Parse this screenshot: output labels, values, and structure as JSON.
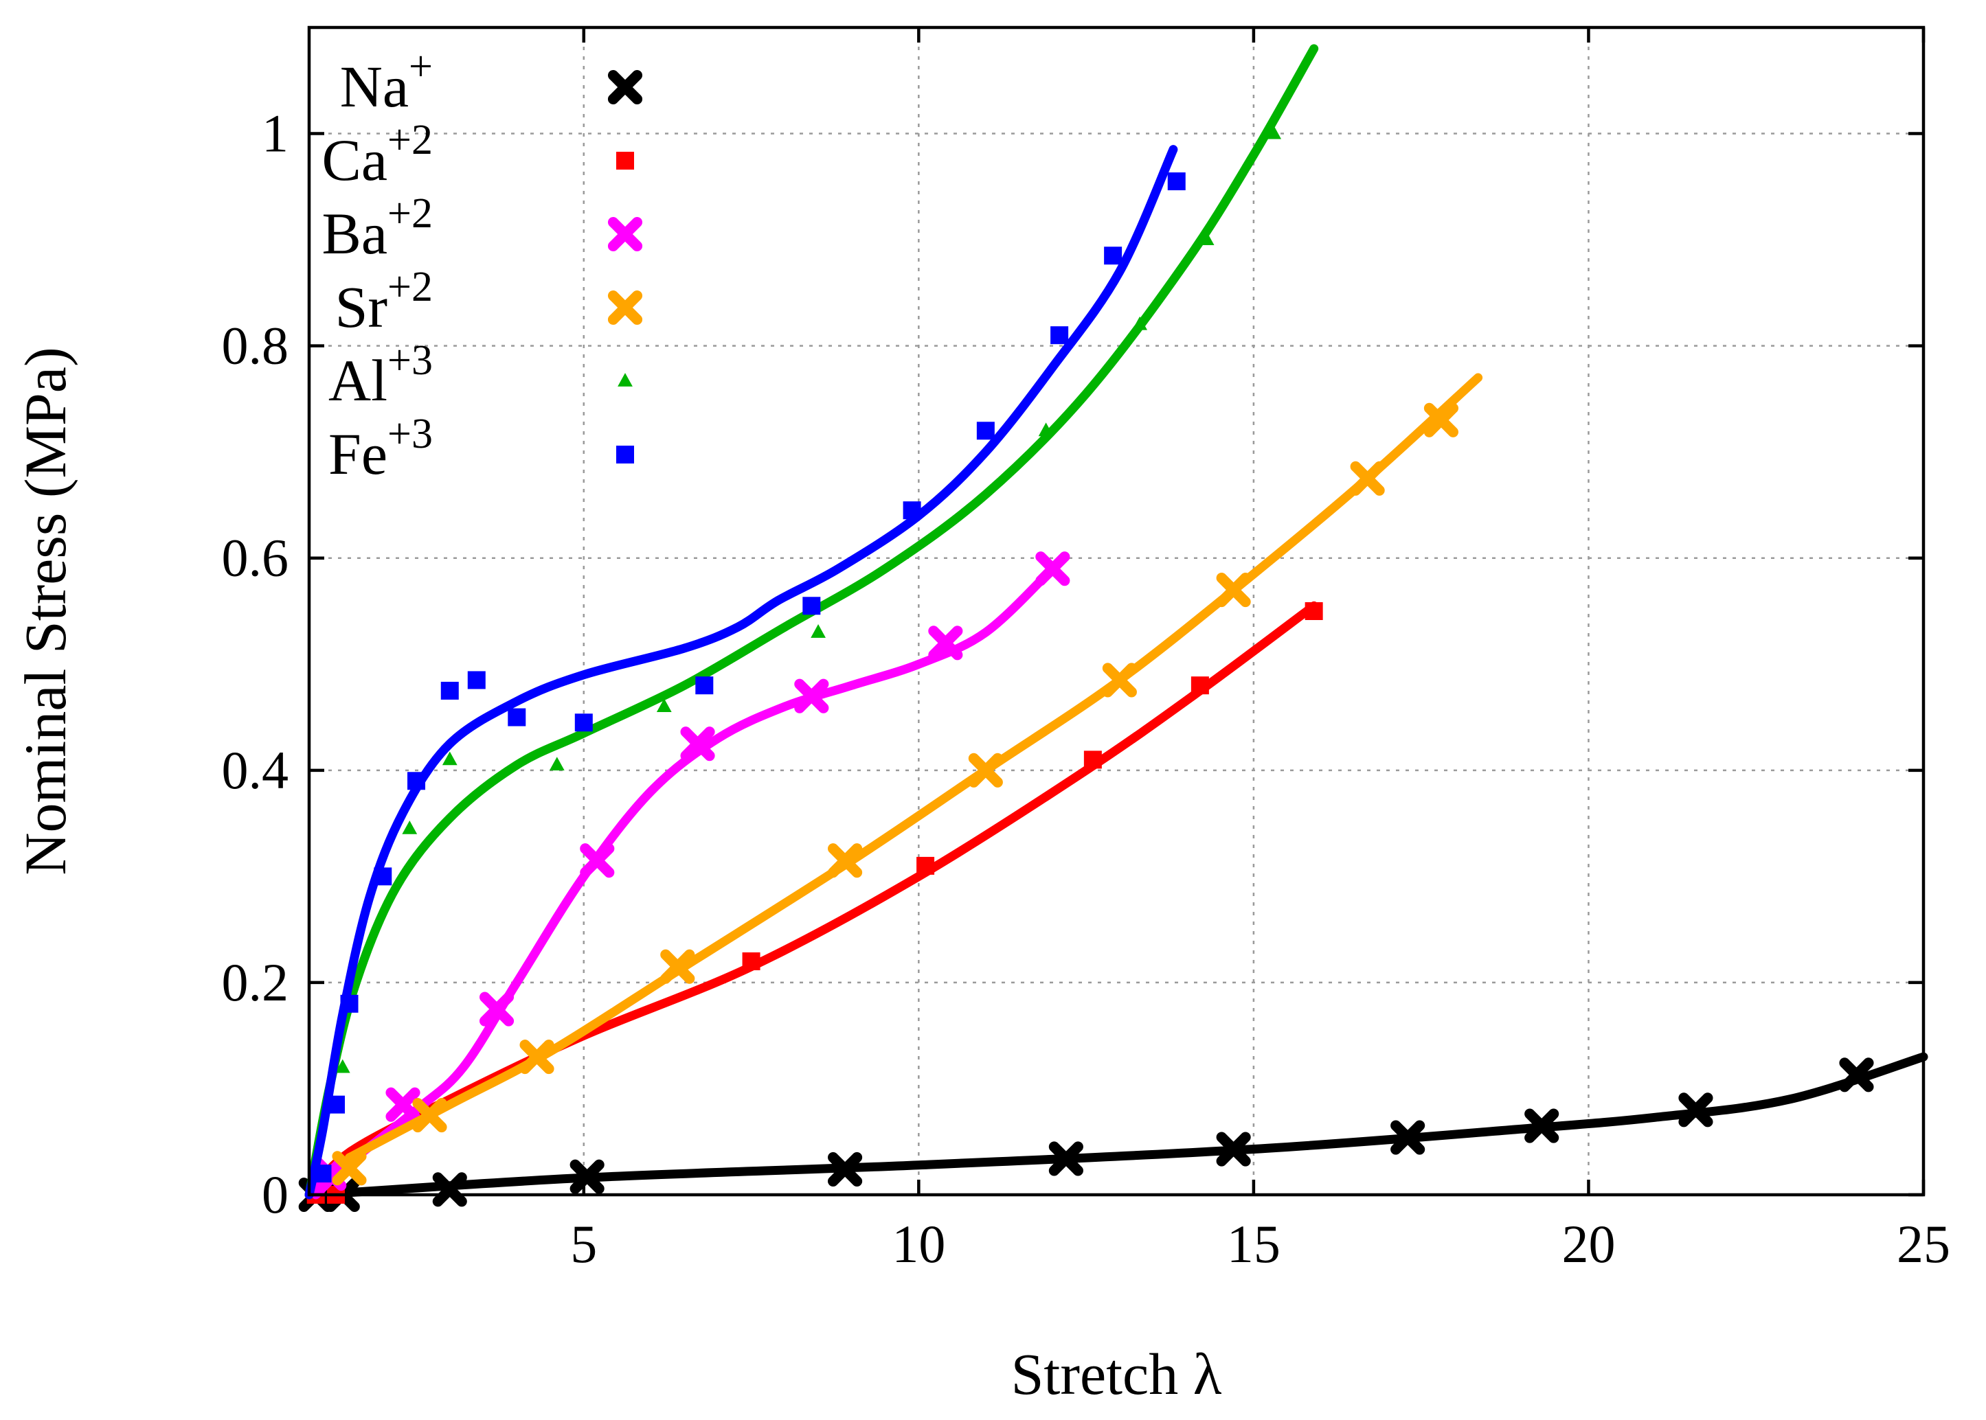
{
  "chart_data": {
    "type": "scatter",
    "title": "",
    "xlabel": "Stretch λ",
    "ylabel": "Nominal Stress (MPa)",
    "xlim": [
      0.9,
      25
    ],
    "ylim": [
      0,
      1.1
    ],
    "xticks": [
      5,
      10,
      15,
      20,
      25
    ],
    "yticks": [
      0,
      0.2,
      0.4,
      0.6,
      0.8,
      1
    ],
    "xtick_labels": [
      "5",
      "10",
      "15",
      "20",
      "25"
    ],
    "ytick_labels": [
      "0",
      "0.2",
      "0.4",
      "0.6",
      "0.8",
      "1"
    ],
    "grid": true,
    "legend_position": "top-left",
    "series": [
      {
        "name": "Na",
        "sup": "+",
        "color": "#000000",
        "marker": "x",
        "points": [
          [
            1.0,
            0.0
          ],
          [
            1.4,
            0.0
          ],
          [
            3.0,
            0.005
          ],
          [
            5.05,
            0.017
          ],
          [
            8.9,
            0.024
          ],
          [
            12.2,
            0.034
          ],
          [
            14.7,
            0.043
          ],
          [
            17.3,
            0.054
          ],
          [
            19.3,
            0.065
          ],
          [
            21.6,
            0.08
          ],
          [
            24.0,
            0.113
          ]
        ],
        "fit": [
          [
            1.0,
            0.0
          ],
          [
            5,
            0.016
          ],
          [
            10,
            0.028
          ],
          [
            15,
            0.043
          ],
          [
            19,
            0.062
          ],
          [
            21,
            0.073
          ],
          [
            23,
            0.09
          ],
          [
            25,
            0.13
          ]
        ]
      },
      {
        "name": "Ca",
        "sup": "+2",
        "color": "#ff0000",
        "marker": "square",
        "points": [
          [
            1.0,
            0.0
          ],
          [
            1.3,
            0.0
          ],
          [
            7.5,
            0.22
          ],
          [
            10.1,
            0.31
          ],
          [
            12.6,
            0.41
          ],
          [
            14.2,
            0.48
          ],
          [
            15.9,
            0.55
          ]
        ],
        "fit": [
          [
            0.9,
            0.0
          ],
          [
            1.5,
            0.04
          ],
          [
            3,
            0.09
          ],
          [
            5,
            0.15
          ],
          [
            7.5,
            0.215
          ],
          [
            10,
            0.3
          ],
          [
            12.5,
            0.4
          ],
          [
            14.2,
            0.475
          ],
          [
            15.9,
            0.555
          ]
        ]
      },
      {
        "name": "Ba",
        "sup": "+2",
        "color": "#ff00ff",
        "marker": "x",
        "points": [
          [
            1.2,
            0.02
          ],
          [
            2.3,
            0.085
          ],
          [
            3.7,
            0.175
          ],
          [
            5.2,
            0.315
          ],
          [
            6.7,
            0.425
          ],
          [
            8.4,
            0.47
          ],
          [
            10.4,
            0.52
          ],
          [
            12.0,
            0.59
          ]
        ],
        "fit": [
          [
            1.0,
            0.0
          ],
          [
            1.5,
            0.03
          ],
          [
            2.5,
            0.08
          ],
          [
            3.2,
            0.12
          ],
          [
            4,
            0.2
          ],
          [
            5,
            0.3
          ],
          [
            6,
            0.38
          ],
          [
            7,
            0.43
          ],
          [
            8,
            0.46
          ],
          [
            9,
            0.48
          ],
          [
            10,
            0.5
          ],
          [
            11,
            0.53
          ],
          [
            12.0,
            0.59
          ]
        ]
      },
      {
        "name": "Sr",
        "sup": "+2",
        "color": "#ffa500",
        "marker": "x",
        "points": [
          [
            1.5,
            0.025
          ],
          [
            2.7,
            0.075
          ],
          [
            4.3,
            0.13
          ],
          [
            6.4,
            0.215
          ],
          [
            8.9,
            0.315
          ],
          [
            11.0,
            0.4
          ],
          [
            13.0,
            0.485
          ],
          [
            14.7,
            0.57
          ],
          [
            16.7,
            0.675
          ],
          [
            17.8,
            0.73
          ]
        ],
        "fit": [
          [
            1.5,
            0.035
          ],
          [
            3,
            0.085
          ],
          [
            4.5,
            0.135
          ],
          [
            6.5,
            0.215
          ],
          [
            9,
            0.315
          ],
          [
            11,
            0.4
          ],
          [
            13,
            0.485
          ],
          [
            15,
            0.585
          ],
          [
            16.7,
            0.675
          ],
          [
            18.35,
            0.77
          ]
        ]
      },
      {
        "name": "Al",
        "sup": "+3",
        "color": "#00b400",
        "marker": "triangle",
        "points": [
          [
            1.1,
            0.02
          ],
          [
            1.4,
            0.12
          ],
          [
            2.4,
            0.345
          ],
          [
            3.0,
            0.41
          ],
          [
            4.6,
            0.405
          ],
          [
            6.2,
            0.46
          ],
          [
            8.5,
            0.53
          ],
          [
            11.9,
            0.72
          ],
          [
            13.3,
            0.82
          ],
          [
            14.3,
            0.9
          ],
          [
            15.3,
            1.0
          ]
        ],
        "fit": [
          [
            0.9,
            0.0
          ],
          [
            1.2,
            0.1
          ],
          [
            1.6,
            0.2
          ],
          [
            2.2,
            0.29
          ],
          [
            3,
            0.355
          ],
          [
            4,
            0.405
          ],
          [
            5,
            0.435
          ],
          [
            6.5,
            0.48
          ],
          [
            8,
            0.535
          ],
          [
            9.5,
            0.59
          ],
          [
            11,
            0.66
          ],
          [
            12.5,
            0.755
          ],
          [
            14,
            0.88
          ],
          [
            15,
            0.98
          ],
          [
            15.9,
            1.08
          ]
        ]
      },
      {
        "name": "Fe",
        "sup": "+3",
        "color": "#0000ff",
        "marker": "square",
        "points": [
          [
            1.1,
            0.02
          ],
          [
            1.3,
            0.085
          ],
          [
            1.5,
            0.18
          ],
          [
            2.0,
            0.3
          ],
          [
            2.5,
            0.39
          ],
          [
            3.0,
            0.475
          ],
          [
            3.4,
            0.485
          ],
          [
            4.0,
            0.45
          ],
          [
            5.0,
            0.445
          ],
          [
            6.8,
            0.48
          ],
          [
            8.4,
            0.555
          ],
          [
            9.9,
            0.645
          ],
          [
            11.0,
            0.72
          ],
          [
            12.1,
            0.81
          ],
          [
            12.9,
            0.885
          ],
          [
            13.85,
            0.955
          ]
        ],
        "fit": [
          [
            0.9,
            0.0
          ],
          [
            1.1,
            0.06
          ],
          [
            1.4,
            0.17
          ],
          [
            1.8,
            0.28
          ],
          [
            2.3,
            0.36
          ],
          [
            3,
            0.425
          ],
          [
            4,
            0.465
          ],
          [
            5,
            0.49
          ],
          [
            6.5,
            0.515
          ],
          [
            7.3,
            0.535
          ],
          [
            7.9,
            0.56
          ],
          [
            8.8,
            0.59
          ],
          [
            10,
            0.64
          ],
          [
            11,
            0.7
          ],
          [
            12,
            0.78
          ],
          [
            13,
            0.87
          ],
          [
            13.8,
            0.985
          ]
        ]
      }
    ]
  }
}
